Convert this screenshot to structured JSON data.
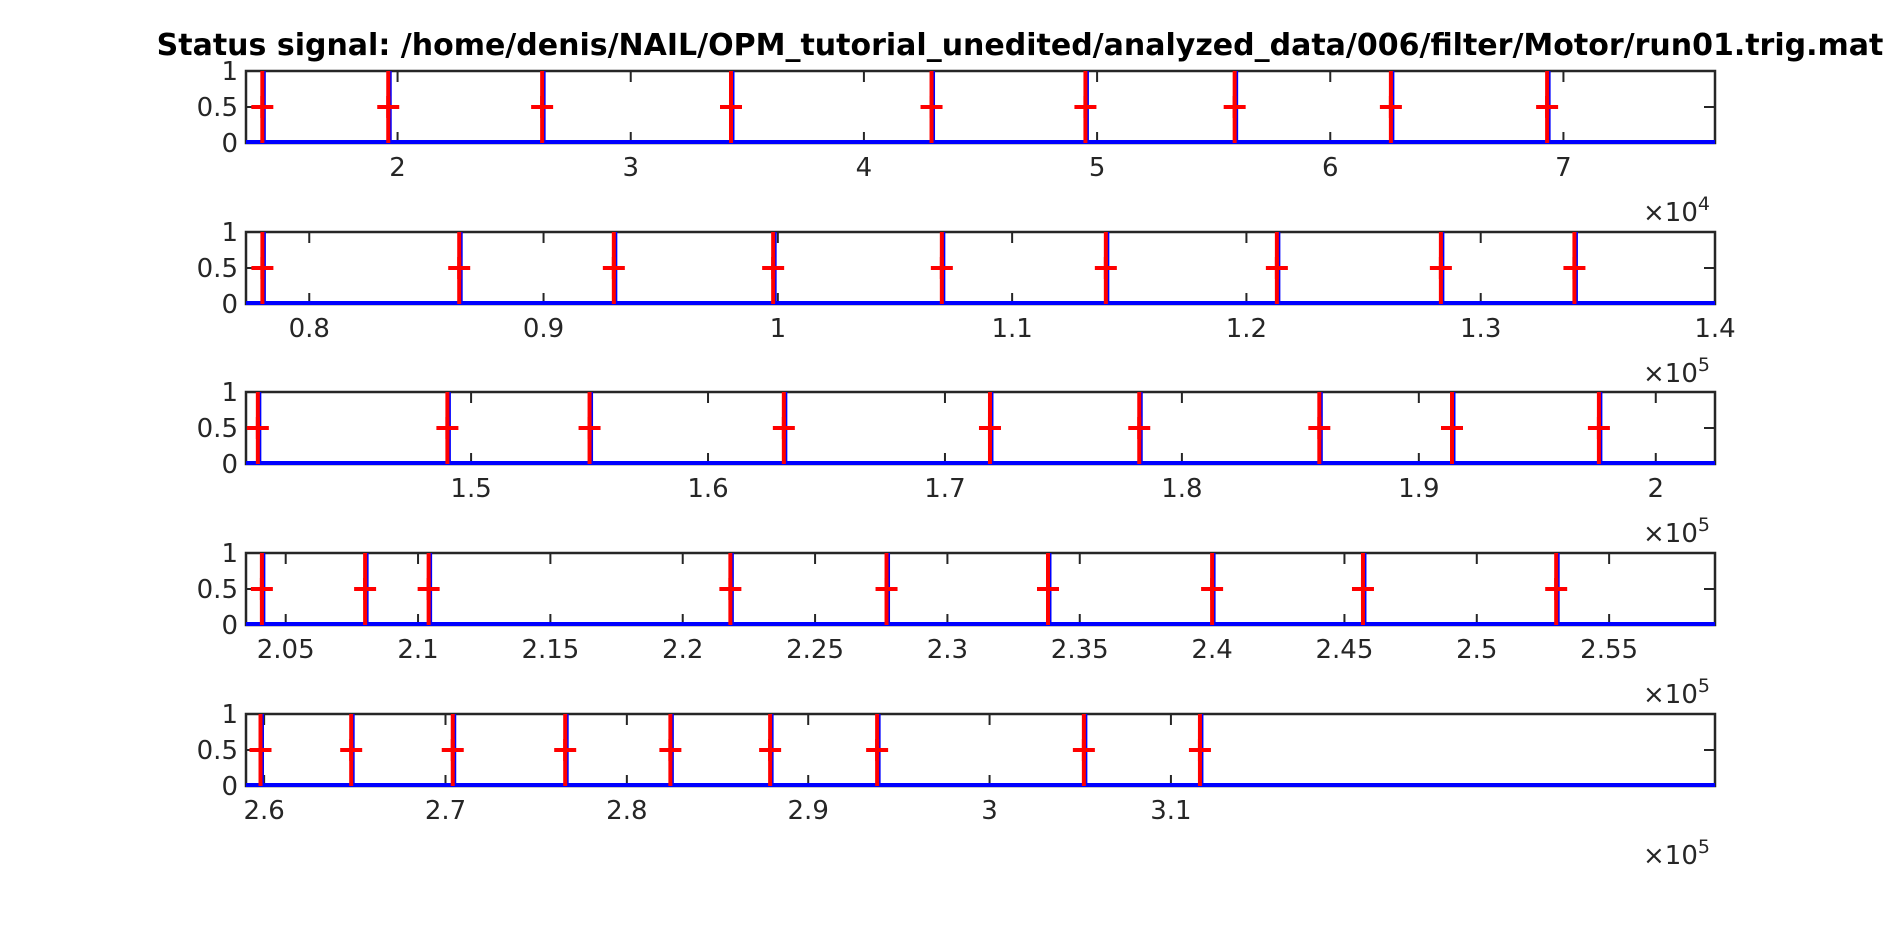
{
  "chart_data": {
    "type": "line",
    "title": "Status signal: /home/denis/NAIL/OPM_tutorial_unedited/analyzed_data/006/filter/Motor/run01.trig.mat",
    "colors": {
      "signal": "#0000ff",
      "marker": "#ff0000",
      "axes": "#262626"
    },
    "panels": [
      {
        "xlim": [
          1.35,
          7.65
        ],
        "ylim": [
          0,
          1
        ],
        "x_multiplier": "×10",
        "x_exponent": "4",
        "xticks": [
          2,
          3,
          4,
          5,
          6,
          7
        ],
        "xtick_labels": [
          "2",
          "3",
          "4",
          "5",
          "6",
          "7"
        ],
        "yticks": [
          0,
          0.5,
          1
        ],
        "ytick_labels": [
          "0",
          "0.5",
          "1"
        ],
        "events": [
          1.42,
          1.96,
          2.62,
          3.43,
          4.29,
          4.95,
          5.59,
          6.26,
          6.93
        ],
        "marker_y": 0.5
      },
      {
        "xlim": [
          0.773,
          1.4
        ],
        "ylim": [
          0,
          1
        ],
        "x_multiplier": "×10",
        "x_exponent": "5",
        "xticks": [
          0.8,
          0.9,
          1.0,
          1.1,
          1.2,
          1.3,
          1.4
        ],
        "xtick_labels": [
          "0.8",
          "0.9",
          "1",
          "1.1",
          "1.2",
          "1.3",
          "1.4"
        ],
        "yticks": [
          0,
          0.5,
          1
        ],
        "ytick_labels": [
          "0",
          "0.5",
          "1"
        ],
        "events": [
          0.78,
          0.864,
          0.93,
          0.998,
          1.07,
          1.14,
          1.213,
          1.283,
          1.34
        ],
        "marker_y": 0.5
      },
      {
        "xlim": [
          1.405,
          2.025
        ],
        "ylim": [
          0,
          1
        ],
        "x_multiplier": "×10",
        "x_exponent": "5",
        "xticks": [
          1.5,
          1.6,
          1.7,
          1.8,
          1.9,
          2.0
        ],
        "xtick_labels": [
          "1.5",
          "1.6",
          "1.7",
          "1.8",
          "1.9",
          "2"
        ],
        "yticks": [
          0,
          0.5,
          1
        ],
        "ytick_labels": [
          "0",
          "0.5",
          "1"
        ],
        "events": [
          1.41,
          1.49,
          1.55,
          1.632,
          1.719,
          1.782,
          1.858,
          1.914,
          1.976
        ],
        "marker_y": 0.5
      },
      {
        "xlim": [
          2.035,
          2.59
        ],
        "ylim": [
          0,
          1
        ],
        "x_multiplier": "×10",
        "x_exponent": "5",
        "xticks": [
          2.05,
          2.1,
          2.15,
          2.2,
          2.25,
          2.3,
          2.35,
          2.4,
          2.45,
          2.5,
          2.55
        ],
        "xtick_labels": [
          "2.05",
          "2.1",
          "2.15",
          "2.2",
          "2.25",
          "2.3",
          "2.35",
          "2.4",
          "2.45",
          "2.5",
          "2.55"
        ],
        "yticks": [
          0,
          0.5,
          1
        ],
        "ytick_labels": [
          "0",
          "0.5",
          "1"
        ],
        "events": [
          2.041,
          2.08,
          2.104,
          2.218,
          2.277,
          2.338,
          2.4,
          2.457,
          2.53
        ],
        "marker_y": 0.5
      },
      {
        "xlim": [
          2.59,
          3.4
        ],
        "ylim": [
          0,
          1
        ],
        "x_multiplier": "×10",
        "x_exponent": "5",
        "xticks": [
          2.6,
          2.7,
          2.8,
          2.9,
          3.0,
          3.1
        ],
        "xtick_labels": [
          "2.6",
          "2.7",
          "2.8",
          "2.9",
          "3",
          "3.1"
        ],
        "yticks": [
          0,
          0.5,
          1
        ],
        "ytick_labels": [
          "0",
          "0.5",
          "1"
        ],
        "events": [
          2.598,
          2.648,
          2.704,
          2.766,
          2.824,
          2.879,
          2.938,
          3.052,
          3.116
        ],
        "marker_y": 0.5
      }
    ]
  }
}
